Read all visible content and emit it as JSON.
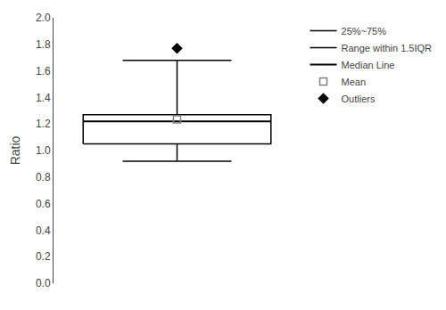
{
  "chart_data": {
    "type": "box",
    "ylabel": "Ratio",
    "ylim": [
      0.0,
      2.0
    ],
    "yticks": [
      {
        "value": 0,
        "label": "0.0"
      },
      0.2,
      0.4,
      0.6,
      0.8,
      {
        "value": 1,
        "label": "1.0"
      },
      1.2,
      1.4,
      1.6,
      1.8,
      {
        "value": 2,
        "label": "2.0"
      }
    ],
    "grid": false,
    "legend": "upper right",
    "tick_labels": "y",
    "series": [
      {
        "name": "25%~75%",
        "type": "box",
        "values": [
          1.05,
          1.27
        ],
        "color": "black"
      },
      {
        "name": "Range within 1.5IQR",
        "type": "whisker",
        "values": [
          0.92,
          1.68
        ],
        "color": "black"
      },
      {
        "name": "Median Line",
        "type": "line",
        "values": [
          1.22
        ],
        "color": "black"
      },
      {
        "name": "Mean",
        "type": "scatter",
        "marker": "square-open",
        "values": [
          1.235
        ],
        "color": "gray"
      },
      {
        "name": "Outliers",
        "type": "scatter",
        "marker": "diamond",
        "values": [
          1.77
        ],
        "color": "black"
      }
    ]
  }
}
